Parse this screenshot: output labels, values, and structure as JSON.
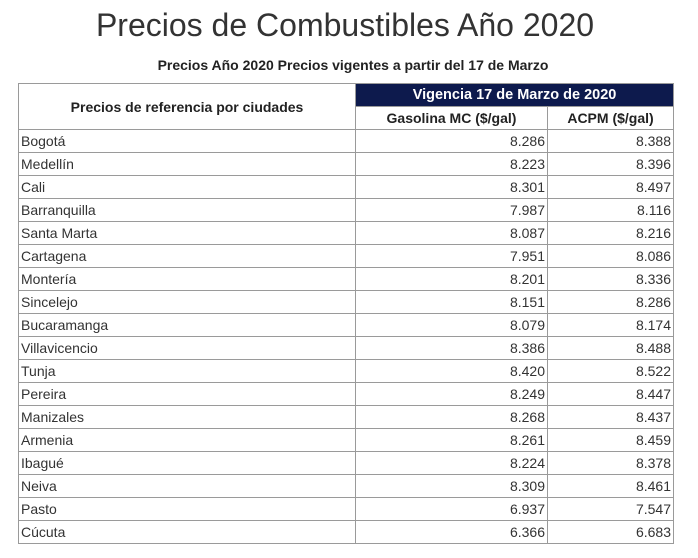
{
  "title": "Precios de Combustibles Año 2020",
  "subtitle": "Precios Año 2020 Precios vigentes a partir del 17 de Marzo",
  "table": {
    "ref_header": "Precios de referencia por ciudades",
    "group_header": "Vigencia 17 de Marzo de 2020",
    "col_gasolina": "Gasolina MC ($/gal)",
    "col_acpm": "ACPM ($/gal)",
    "header_color": "#0d1a4d",
    "rows": [
      {
        "city": "Bogotá",
        "gasolina": "8.286",
        "acpm": "8.388"
      },
      {
        "city": "Medellín",
        "gasolina": "8.223",
        "acpm": "8.396"
      },
      {
        "city": "Cali",
        "gasolina": "8.301",
        "acpm": "8.497"
      },
      {
        "city": "Barranquilla",
        "gasolina": "7.987",
        "acpm": "8.116"
      },
      {
        "city": "Santa Marta",
        "gasolina": "8.087",
        "acpm": "8.216"
      },
      {
        "city": "Cartagena",
        "gasolina": "7.951",
        "acpm": "8.086"
      },
      {
        "city": "Montería",
        "gasolina": "8.201",
        "acpm": "8.336"
      },
      {
        "city": "Sincelejo",
        "gasolina": "8.151",
        "acpm": "8.286"
      },
      {
        "city": "Bucaramanga",
        "gasolina": "8.079",
        "acpm": "8.174"
      },
      {
        "city": "Villavicencio",
        "gasolina": "8.386",
        "acpm": "8.488"
      },
      {
        "city": "Tunja",
        "gasolina": "8.420",
        "acpm": "8.522"
      },
      {
        "city": "Pereira",
        "gasolina": "8.249",
        "acpm": "8.447"
      },
      {
        "city": "Manizales",
        "gasolina": "8.268",
        "acpm": "8.437"
      },
      {
        "city": "Armenia",
        "gasolina": "8.261",
        "acpm": "8.459"
      },
      {
        "city": "Ibagué",
        "gasolina": "8.224",
        "acpm": "8.378"
      },
      {
        "city": "Neiva",
        "gasolina": "8.309",
        "acpm": "8.461"
      },
      {
        "city": "Pasto",
        "gasolina": "6.937",
        "acpm": "7.547"
      },
      {
        "city": "Cúcuta",
        "gasolina": "6.366",
        "acpm": "6.683"
      }
    ]
  }
}
